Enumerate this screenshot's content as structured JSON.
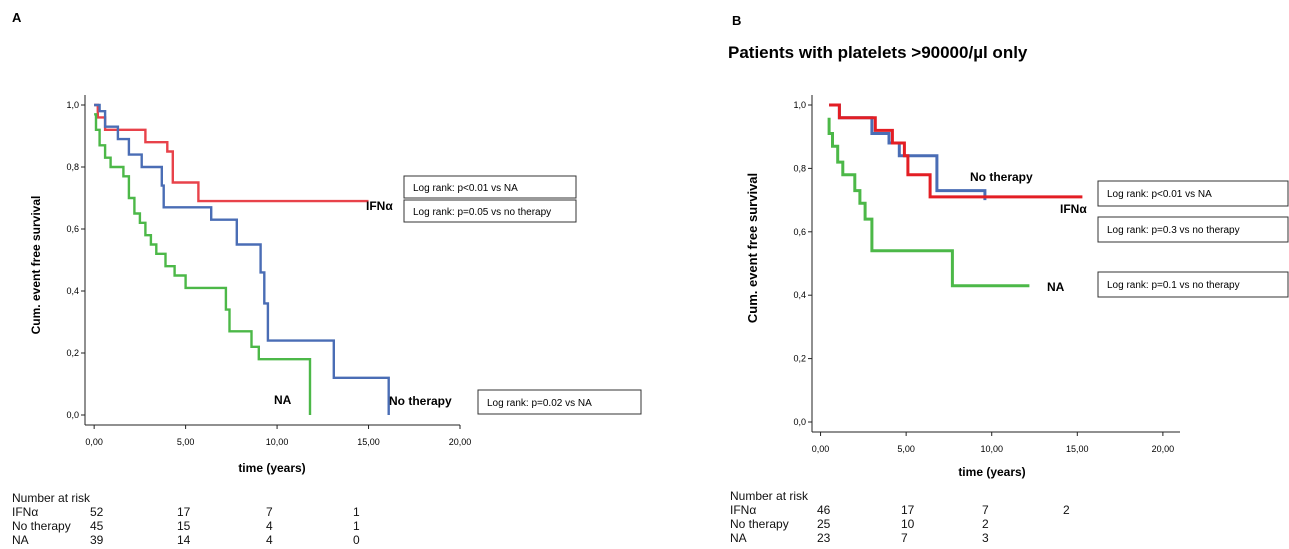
{
  "panels": [
    {
      "letter": "A",
      "title": "",
      "chart_data": {
        "type": "line",
        "subtype": "kaplan-meier step",
        "xlabel": "time (years)",
        "ylabel": "Cum. event free survival",
        "xlim": [
          -0.5,
          20
        ],
        "ylim": [
          0,
          1
        ],
        "xticks": [
          "0,00",
          "5,00",
          "10,00",
          "15,00",
          "20,00"
        ],
        "yticks": [
          "0,0",
          "0,2",
          "0,4",
          "0,6",
          "0,8",
          "1,0"
        ],
        "grid": false,
        "series": [
          {
            "name": "IFNα",
            "color": "#e8424a",
            "x": [
              0,
              0.2,
              0.2,
              0.6,
              0.6,
              2.8,
              2.8,
              4.0,
              4.0,
              4.3,
              4.3,
              5.7,
              5.7,
              15
            ],
            "y": [
              1.0,
              1.0,
              0.96,
              0.96,
              0.92,
              0.92,
              0.88,
              0.88,
              0.85,
              0.85,
              0.75,
              0.75,
              0.69,
              0.69
            ]
          },
          {
            "name": "No therapy",
            "color": "#4a6db5",
            "x": [
              0,
              0.3,
              0.3,
              0.6,
              0.6,
              1.3,
              1.3,
              1.9,
              1.9,
              2.6,
              2.6,
              3.7,
              3.7,
              3.8,
              3.8,
              6.4,
              6.4,
              7.8,
              7.8,
              9.1,
              9.1,
              9.3,
              9.3,
              9.5,
              9.5,
              13.1,
              13.1,
              16.1,
              16.1
            ],
            "y": [
              1.0,
              1.0,
              0.98,
              0.98,
              0.93,
              0.93,
              0.89,
              0.89,
              0.84,
              0.84,
              0.8,
              0.8,
              0.74,
              0.74,
              0.67,
              0.67,
              0.63,
              0.63,
              0.55,
              0.55,
              0.46,
              0.46,
              0.36,
              0.36,
              0.24,
              0.24,
              0.12,
              0.12,
              0.0
            ]
          },
          {
            "name": "NA",
            "color": "#4cb848",
            "x": [
              0,
              0.1,
              0.1,
              0.3,
              0.3,
              0.6,
              0.6,
              0.9,
              0.9,
              1.6,
              1.6,
              1.9,
              1.9,
              2.2,
              2.2,
              2.5,
              2.5,
              2.8,
              2.8,
              3.1,
              3.1,
              3.4,
              3.4,
              3.9,
              3.9,
              4.4,
              4.4,
              5.0,
              5.0,
              7.2,
              7.2,
              7.4,
              7.4,
              8.6,
              8.6,
              9.0,
              9.0,
              11.8,
              11.8
            ],
            "y": [
              0.97,
              0.97,
              0.92,
              0.92,
              0.87,
              0.87,
              0.83,
              0.83,
              0.8,
              0.8,
              0.77,
              0.77,
              0.7,
              0.7,
              0.65,
              0.65,
              0.62,
              0.62,
              0.58,
              0.58,
              0.55,
              0.55,
              0.52,
              0.52,
              0.48,
              0.48,
              0.45,
              0.45,
              0.41,
              0.41,
              0.34,
              0.34,
              0.27,
              0.27,
              0.22,
              0.22,
              0.18,
              0.18,
              0.0
            ]
          }
        ],
        "curve_labels": [
          {
            "text": "IFNα",
            "series": "IFNα"
          },
          {
            "text": "No therapy",
            "series": "No therapy"
          },
          {
            "text": "NA",
            "series": "NA"
          }
        ],
        "annotations": [
          "Log rank: p<0.01 vs NA",
          "Log rank: p=0.05 vs no therapy",
          "Log rank: p=0.02 vs NA"
        ]
      },
      "risk_table": {
        "header": "Number at risk",
        "rows": [
          {
            "label": "IFNα",
            "values": [
              "52",
              "17",
              "7",
              "1"
            ]
          },
          {
            "label": "No therapy",
            "values": [
              "45",
              "15",
              "4",
              "1"
            ]
          },
          {
            "label": "NA",
            "values": [
              "39",
              "14",
              "4",
              "0"
            ]
          }
        ]
      }
    },
    {
      "letter": "B",
      "title": "Patients with platelets >90000/µl only",
      "chart_data": {
        "type": "line",
        "subtype": "kaplan-meier step",
        "xlabel": "time (years)",
        "ylabel": "Cum. event free survival",
        "xlim": [
          -0.5,
          21
        ],
        "ylim": [
          0,
          1
        ],
        "xticks": [
          "0,00",
          "5,00",
          "10,00",
          "15,00",
          "20,00"
        ],
        "yticks": [
          "0,0",
          "0,2",
          "0,4",
          "0,6",
          "0,8",
          "1,0"
        ],
        "grid": false,
        "series": [
          {
            "name": "No therapy",
            "color": "#4a6db5",
            "x": [
              0.5,
              1.1,
              1.1,
              3.0,
              3.0,
              4.0,
              4.0,
              4.6,
              4.6,
              6.8,
              6.8,
              9.6,
              9.6
            ],
            "y": [
              1.0,
              1.0,
              0.96,
              0.96,
              0.91,
              0.91,
              0.88,
              0.88,
              0.84,
              0.84,
              0.73,
              0.73,
              0.7
            ]
          },
          {
            "name": "IFNα",
            "color": "#e31e24",
            "x": [
              0.5,
              1.1,
              1.1,
              3.2,
              3.2,
              4.2,
              4.2,
              4.9,
              4.9,
              5.1,
              5.1,
              6.4,
              6.4,
              15.3
            ],
            "y": [
              1.0,
              1.0,
              0.96,
              0.96,
              0.92,
              0.92,
              0.88,
              0.88,
              0.84,
              0.84,
              0.78,
              0.78,
              0.71,
              0.71
            ]
          },
          {
            "name": "NA",
            "color": "#4cb848",
            "x": [
              0.5,
              0.5,
              0.7,
              0.7,
              1.0,
              1.0,
              1.3,
              1.3,
              2.0,
              2.0,
              2.3,
              2.3,
              2.6,
              2.6,
              3.0,
              3.0,
              7.7,
              7.7,
              12.2
            ],
            "y": [
              0.96,
              0.91,
              0.91,
              0.87,
              0.87,
              0.82,
              0.82,
              0.78,
              0.78,
              0.73,
              0.73,
              0.69,
              0.69,
              0.64,
              0.64,
              0.54,
              0.54,
              0.43,
              0.43
            ]
          }
        ],
        "curve_labels": [
          {
            "text": "No therapy",
            "series": "No therapy"
          },
          {
            "text": "IFNα",
            "series": "IFNα"
          },
          {
            "text": "NA",
            "series": "NA"
          }
        ],
        "annotations": [
          "Log rank: p<0.01 vs NA",
          "Log rank: p=0.3 vs no therapy",
          "Log rank: p=0.1 vs no therapy"
        ]
      },
      "risk_table": {
        "header": "Number at risk",
        "rows": [
          {
            "label": "IFNα",
            "values": [
              "46",
              "17",
              "7",
              "2"
            ]
          },
          {
            "label": "No therapy",
            "values": [
              "25",
              "10",
              "2",
              ""
            ]
          },
          {
            "label": "NA",
            "values": [
              "23",
              "7",
              "3",
              ""
            ]
          }
        ]
      }
    }
  ]
}
